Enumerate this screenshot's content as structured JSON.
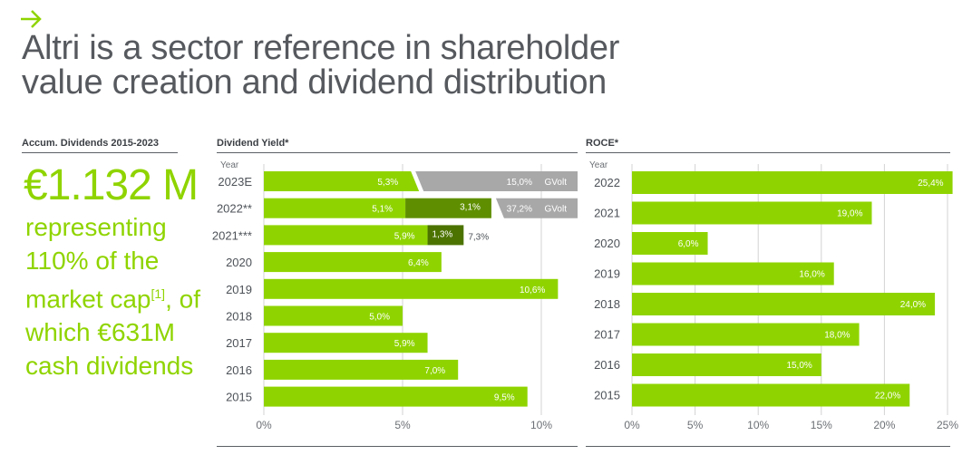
{
  "header": {
    "title_line1": "Altri is a sector reference in shareholder",
    "title_line2": "value creation and dividend distribution"
  },
  "accum": {
    "label": "Accum. Dividends 2015-2023",
    "amount": "€1.132 M",
    "text_part1": "representing 110% of the market cap",
    "footnote": "[1]",
    "text_part2": ", of which €631M cash dividends"
  },
  "colors": {
    "green": "#8fd400",
    "dark_green": "#5f8f00",
    "olive": "#4c7300",
    "grey": "#a8a8a8",
    "title": "#56595e",
    "rule": "#5b5f64",
    "grid": "#d3d3d3"
  },
  "chart_data": [
    {
      "type": "bar",
      "orientation": "horizontal",
      "title": "Dividend Yield*",
      "ylabel": "Year",
      "categories": [
        "2023E",
        "2022**",
        "2021***",
        "2020",
        "2019",
        "2018",
        "2017",
        "2016",
        "2015"
      ],
      "values": [
        5.3,
        5.1,
        5.9,
        6.4,
        10.6,
        5.0,
        5.9,
        7.0,
        9.5
      ],
      "value_labels": [
        "5,3%",
        "5,1%",
        "5,9%",
        "6,4%",
        "10,6%",
        "5,0%",
        "5,9%",
        "7,0%",
        "9,5%"
      ],
      "stacked": [
        {
          "category": "2022**",
          "value": 3.1,
          "label": "3,1%",
          "color": "dark_green"
        },
        {
          "category": "2021***",
          "value": 1.3,
          "label": "1,3%",
          "color": "olive"
        }
      ],
      "totals": [
        {
          "category": "2021***",
          "label": "7,3%"
        }
      ],
      "gvolt": [
        {
          "category": "2023E",
          "label": "15,0%",
          "tag": "GVolt"
        },
        {
          "category": "2022**",
          "label": "37,2%",
          "tag": "GVolt"
        }
      ],
      "xticks": [
        "0%",
        "5%",
        "10%"
      ],
      "xlim": [
        0,
        11
      ],
      "grid": true
    },
    {
      "type": "bar",
      "orientation": "horizontal",
      "title": "ROCE*",
      "ylabel": "Year",
      "categories": [
        "2022",
        "2021",
        "2020",
        "2019",
        "2018",
        "2017",
        "2016",
        "2015"
      ],
      "values": [
        25.4,
        19.0,
        6.0,
        16.0,
        24.0,
        18.0,
        15.0,
        22.0
      ],
      "value_labels": [
        "25,4%",
        "19,0%",
        "6,0%",
        "16,0%",
        "24,0%",
        "18,0%",
        "15,0%",
        "22,0%"
      ],
      "xticks": [
        "0%",
        "5%",
        "10%",
        "15%",
        "20%",
        "25%"
      ],
      "xlim": [
        0,
        25
      ],
      "grid": true
    }
  ]
}
